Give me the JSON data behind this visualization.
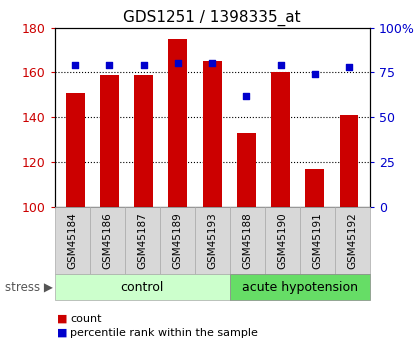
{
  "title": "GDS1251 / 1398335_at",
  "samples": [
    "GSM45184",
    "GSM45186",
    "GSM45187",
    "GSM45189",
    "GSM45193",
    "GSM45188",
    "GSM45190",
    "GSM45191",
    "GSM45192"
  ],
  "counts": [
    151,
    159,
    159,
    175,
    165,
    133,
    160,
    117,
    141
  ],
  "percentiles": [
    79,
    79,
    79,
    80,
    80,
    62,
    79,
    74,
    78
  ],
  "control_count": 5,
  "acute_count": 4,
  "bar_color": "#cc0000",
  "dot_color": "#0000cc",
  "ylim_left": [
    100,
    180
  ],
  "ylim_right": [
    0,
    100
  ],
  "yticks_left": [
    100,
    120,
    140,
    160,
    180
  ],
  "yticks_right": [
    0,
    25,
    50,
    75,
    100
  ],
  "left_tick_labels": [
    "100",
    "120",
    "140",
    "160",
    "180"
  ],
  "right_tick_labels": [
    "0",
    "25",
    "50",
    "75",
    "100%"
  ],
  "ylabel_color_left": "#cc0000",
  "ylabel_color_right": "#0000cc",
  "control_label": "control",
  "acute_label": "acute hypotension",
  "stress_label": "stress",
  "group_bg_control": "#ccffcc",
  "group_bg_acute": "#66dd66",
  "sample_bg": "#d8d8d8",
  "legend_count_label": "count",
  "legend_pct_label": "percentile rank within the sample",
  "bar_bottom": 100,
  "grid_lines": [
    120,
    140,
    160
  ],
  "title_fontsize": 11,
  "tick_fontsize": 9,
  "sample_fontsize": 7.5,
  "group_fontsize": 9,
  "legend_fontsize": 8
}
